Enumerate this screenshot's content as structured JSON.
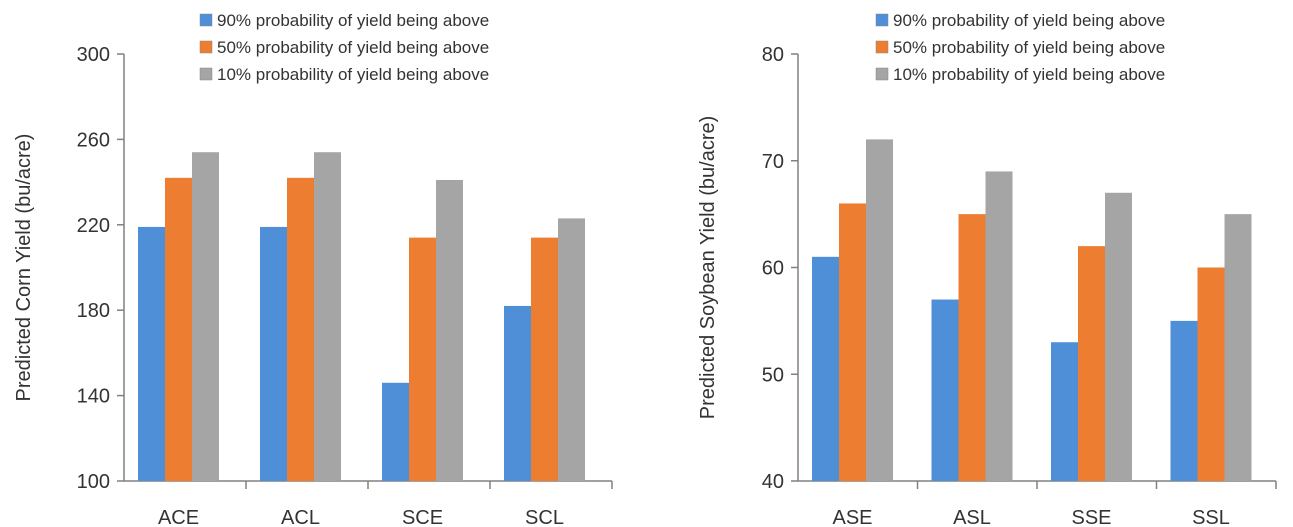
{
  "chart_data": [
    {
      "type": "bar",
      "title": "",
      "xlabel": "",
      "ylabel": "Predicted Corn Yield (bu/acre)",
      "ylim": [
        100,
        300
      ],
      "yticks": [
        100,
        140,
        180,
        220,
        260,
        300
      ],
      "grid": false,
      "legend_position": "top-right",
      "categories": [
        "ACE",
        "ACL",
        "SCE",
        "SCL"
      ],
      "series": [
        {
          "name": "90% probability of yield being above",
          "color": "#4f8fd8",
          "values": [
            219,
            219,
            146,
            182
          ]
        },
        {
          "name": "50% probability of yield being above",
          "color": "#ed7d31",
          "values": [
            242,
            242,
            214,
            214
          ]
        },
        {
          "name": "10% probability of yield being above",
          "color": "#a5a5a5",
          "values": [
            254,
            254,
            241,
            223
          ]
        }
      ]
    },
    {
      "type": "bar",
      "title": "",
      "xlabel": "",
      "ylabel": "Predicted Soybean Yield (bu/acre)",
      "ylim": [
        40,
        80
      ],
      "yticks": [
        40,
        50,
        60,
        70,
        80
      ],
      "grid": false,
      "legend_position": "top-right",
      "categories": [
        "ASE",
        "ASL",
        "SSE",
        "SSL"
      ],
      "series": [
        {
          "name": "90% probability of yield being above",
          "color": "#4f8fd8",
          "values": [
            61,
            57,
            53,
            55
          ]
        },
        {
          "name": "50% probability of yield being above",
          "color": "#ed7d31",
          "values": [
            66,
            65,
            62,
            60
          ]
        },
        {
          "name": "10% probability of yield being above",
          "color": "#a5a5a5",
          "values": [
            72,
            69,
            67,
            65
          ]
        }
      ]
    }
  ]
}
